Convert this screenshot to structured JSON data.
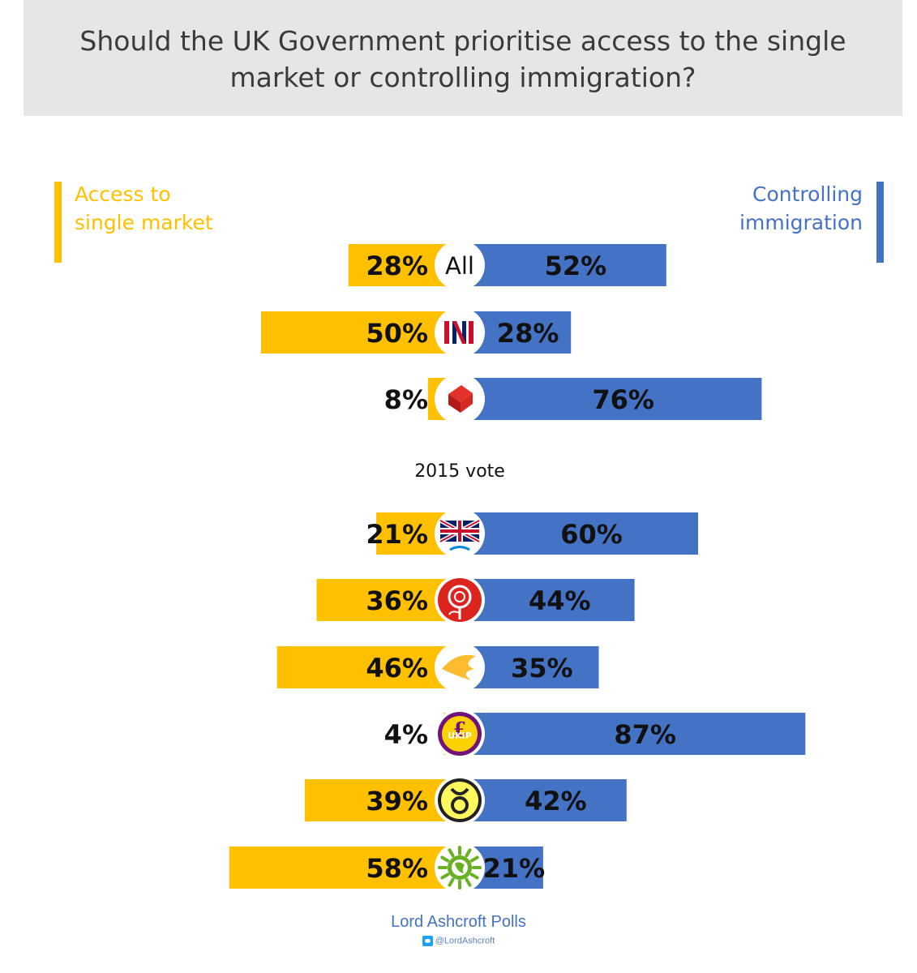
{
  "title": "Should the UK Government prioritise access to the single market or controlling immigration?",
  "legend": {
    "left_label_line1": "Access to",
    "left_label_line2": "single market",
    "right_label_line1": "Controlling",
    "right_label_line2": "immigration"
  },
  "colors": {
    "access": "#ffc000",
    "immigration": "#4472c4",
    "title_bg": "#e7e6e6"
  },
  "chart_data": {
    "type": "bar",
    "series": [
      {
        "name": "Access to single market"
      },
      {
        "name": "Controlling immigration"
      }
    ],
    "sections": [
      {
        "heading": "",
        "rows": [
          0,
          1,
          2
        ]
      },
      {
        "heading": "2015 vote",
        "rows": [
          3,
          4,
          5,
          6,
          7,
          8
        ]
      }
    ],
    "rows": [
      {
        "category": "All",
        "icon": "all-text",
        "access": 28,
        "immigration": 52
      },
      {
        "category": "",
        "icon": "remain-in-icon",
        "access": 50,
        "immigration": 28
      },
      {
        "category": "",
        "icon": "leave-box-icon",
        "access": 8,
        "immigration": 76
      },
      {
        "category": "",
        "icon": "conservative-icon",
        "access": 21,
        "immigration": 60
      },
      {
        "category": "",
        "icon": "labour-rose-icon",
        "access": 36,
        "immigration": 44
      },
      {
        "category": "",
        "icon": "libdem-bird-icon",
        "access": 46,
        "immigration": 35
      },
      {
        "category": "",
        "icon": "ukip-icon",
        "access": 4,
        "immigration": 87
      },
      {
        "category": "",
        "icon": "snp-icon",
        "access": 39,
        "immigration": 42
      },
      {
        "category": "",
        "icon": "green-party-icon",
        "access": 58,
        "immigration": 21
      }
    ]
  },
  "footer": {
    "credit": "Lord Ashcroft Polls",
    "twitter": "@LordAshcroft"
  }
}
